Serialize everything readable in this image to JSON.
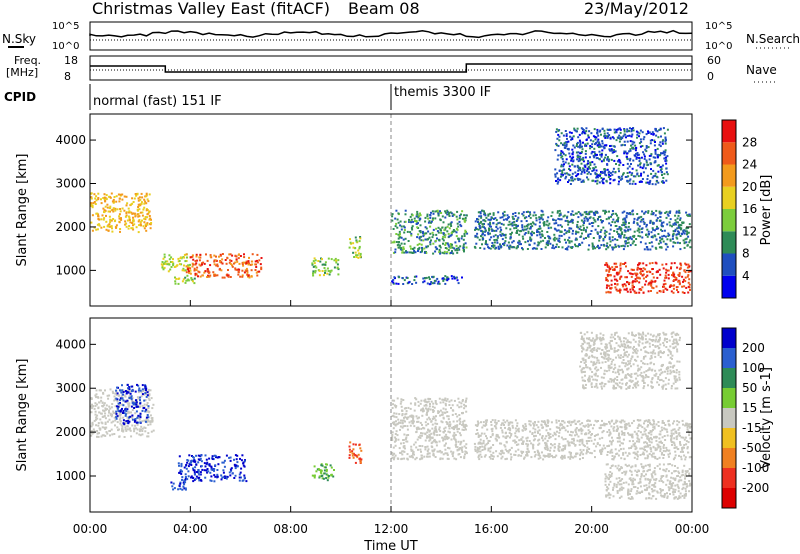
{
  "header": {
    "title": "Christmas Valley East (fitACF)",
    "beam": "Beam 08",
    "date": "23/May/2012"
  },
  "noise_panel": {
    "left_label": "N.Sky",
    "right_label": "N.Search",
    "left_ticks": [
      "10^5",
      "10^0"
    ],
    "right_ticks": [
      "10^5",
      "10^0"
    ]
  },
  "freq_panel": {
    "left_label_line1": "Freq.",
    "left_label_line2": "[MHz]",
    "right_label": "Nave",
    "left_ticks": [
      "18",
      "8"
    ],
    "right_ticks": [
      "60",
      "0"
    ]
  },
  "cpid": {
    "label": "CPID",
    "modes": [
      {
        "name": "normal (fast) 151 IF",
        "start_hour": 0
      },
      {
        "name": "themis 3300 IF",
        "start_hour": 12
      }
    ]
  },
  "axes": {
    "xlabel": "Time UT",
    "x_ticks": [
      "00:00",
      "04:00",
      "08:00",
      "12:00",
      "16:00",
      "20:00",
      "00:00"
    ],
    "ylabel": "Slant Range [km]",
    "y_ticks": [
      "1000",
      "2000",
      "3000",
      "4000"
    ]
  },
  "power_colorbar": {
    "label": "Power [dB]",
    "ticks": [
      "4",
      "8",
      "12",
      "16",
      "20",
      "24",
      "28"
    ],
    "colors": [
      "#0000ee",
      "#1f4fbf",
      "#2e8b57",
      "#7ccd3c",
      "#e8d020",
      "#f39a1c",
      "#ef5a1a",
      "#e81010"
    ]
  },
  "velocity_colorbar": {
    "label": "Velocity [m s-1]",
    "ticks": [
      "200",
      "100",
      "50",
      "15",
      "-15",
      "-50",
      "-100",
      "-200"
    ],
    "colors": [
      "#0000cc",
      "#2a5fd0",
      "#2e8b57",
      "#77cc33",
      "#c8c8c0",
      "#f0c020",
      "#f08020",
      "#ee3020",
      "#dd0000"
    ]
  },
  "chart_data": {
    "type": "heatmap",
    "x_unit": "hour UT",
    "xlim": [
      0,
      24
    ],
    "ylim": [
      180,
      4600
    ],
    "frequency_mhz": [
      {
        "start": 0,
        "end": 3,
        "value": 14
      },
      {
        "start": 3,
        "end": 15,
        "value": 11
      },
      {
        "start": 15,
        "end": 24,
        "value": 15
      }
    ],
    "power_patches": [
      {
        "t0": 0.0,
        "t1": 2.4,
        "r0": 1900,
        "r1": 2800,
        "power": 20
      },
      {
        "t0": 2.8,
        "t1": 4.0,
        "r0": 1000,
        "r1": 1400,
        "power": 16
      },
      {
        "t0": 3.3,
        "t1": 4.2,
        "r0": 700,
        "r1": 900,
        "power": 14
      },
      {
        "t0": 3.8,
        "t1": 6.8,
        "r0": 850,
        "r1": 1400,
        "power": 26
      },
      {
        "t0": 8.8,
        "t1": 9.9,
        "r0": 900,
        "r1": 1300,
        "power": 14
      },
      {
        "t0": 10.3,
        "t1": 10.8,
        "r0": 1300,
        "r1": 1800,
        "power": 14
      },
      {
        "t0": 12.0,
        "t1": 15.0,
        "r0": 1400,
        "r1": 2400,
        "power": 10
      },
      {
        "t0": 12.0,
        "t1": 14.8,
        "r0": 700,
        "r1": 900,
        "power": 6
      },
      {
        "t0": 15.3,
        "t1": 23.9,
        "r0": 1500,
        "r1": 2400,
        "power": 8
      },
      {
        "t0": 18.5,
        "t1": 23.0,
        "r0": 3000,
        "r1": 4300,
        "power": 6
      },
      {
        "t0": 20.5,
        "t1": 23.9,
        "r0": 500,
        "r1": 1200,
        "power": 28
      }
    ],
    "velocity_patches": [
      {
        "t0": 0.0,
        "t1": 2.5,
        "r0": 1900,
        "r1": 3000,
        "velocity": 0
      },
      {
        "t0": 1.0,
        "t1": 2.3,
        "r0": 2200,
        "r1": 3100,
        "velocity": 200
      },
      {
        "t0": 3.5,
        "t1": 6.2,
        "r0": 900,
        "r1": 1500,
        "velocity": 200
      },
      {
        "t0": 3.2,
        "t1": 3.8,
        "r0": 700,
        "r1": 900,
        "velocity": 200
      },
      {
        "t0": 8.8,
        "t1": 9.7,
        "r0": 900,
        "r1": 1300,
        "velocity": 50
      },
      {
        "t0": 10.3,
        "t1": 10.8,
        "r0": 1300,
        "r1": 1800,
        "velocity": -100
      },
      {
        "t0": 12.0,
        "t1": 15.0,
        "r0": 1400,
        "r1": 2800,
        "velocity": 0
      },
      {
        "t0": 15.3,
        "t1": 23.9,
        "r0": 1400,
        "r1": 2300,
        "velocity": 0
      },
      {
        "t0": 19.5,
        "t1": 23.5,
        "r0": 3000,
        "r1": 4300,
        "velocity": 0
      },
      {
        "t0": 20.5,
        "t1": 23.9,
        "r0": 500,
        "r1": 1300,
        "velocity": 0
      }
    ]
  }
}
